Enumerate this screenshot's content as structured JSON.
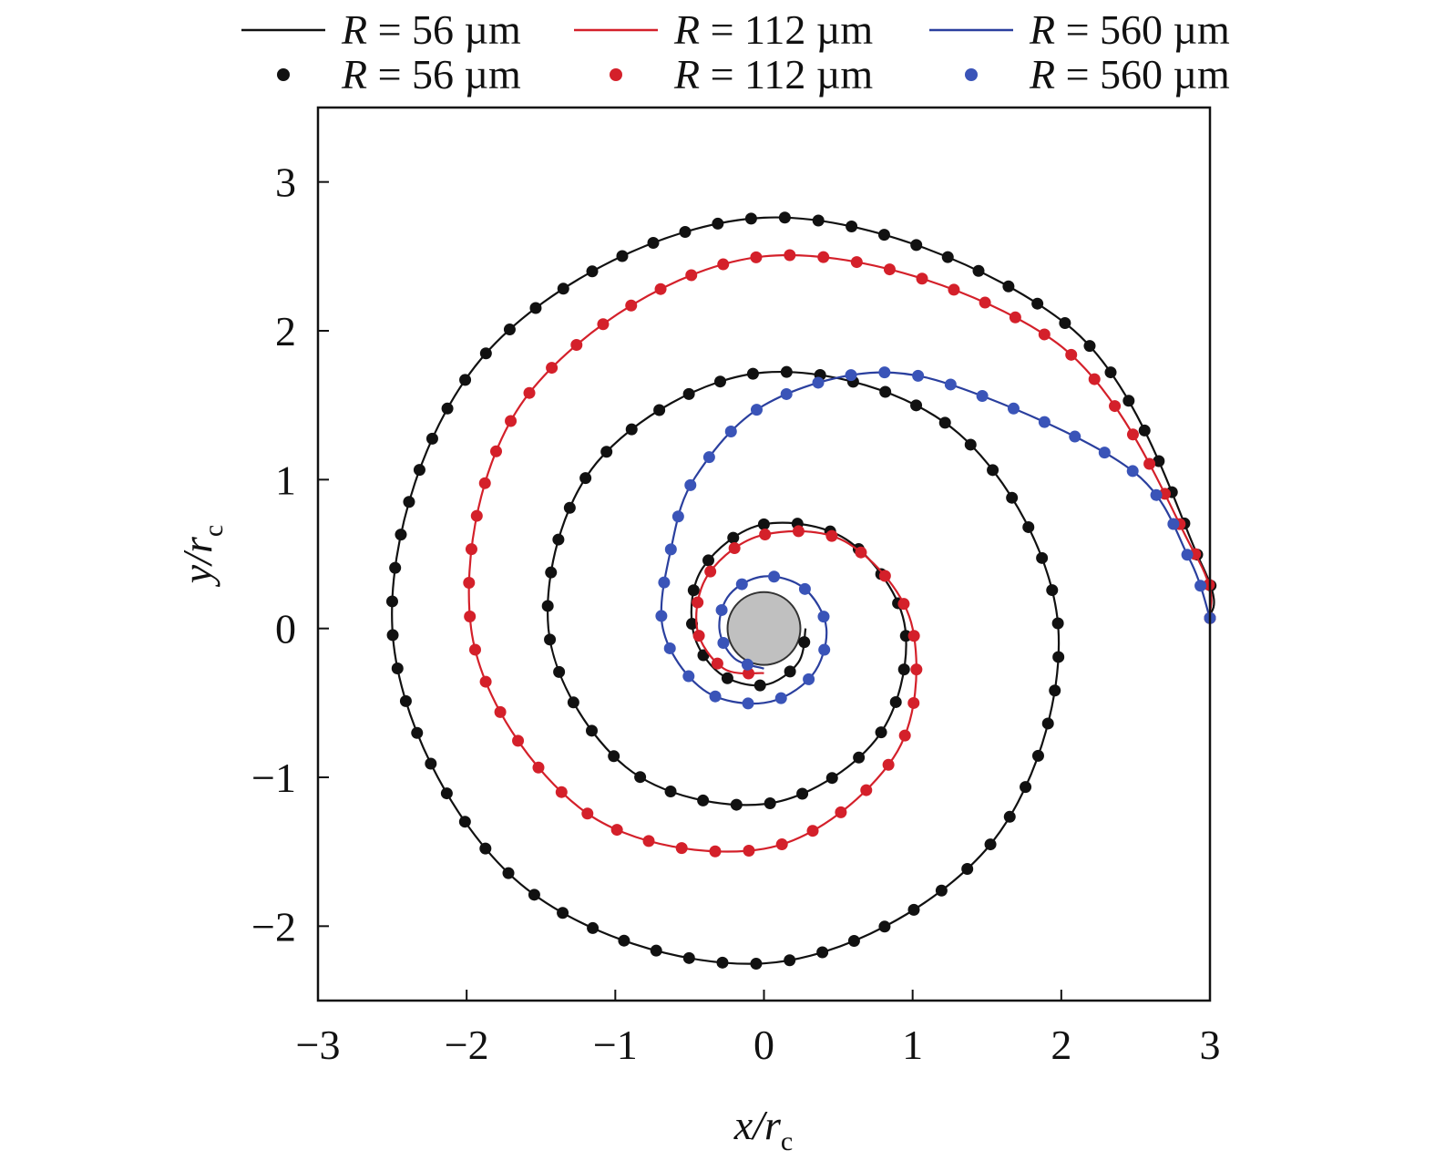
{
  "chart_data": {
    "type": "line",
    "title": "",
    "xlabel": {
      "main": "x/r",
      "sub": "c"
    },
    "ylabel": {
      "main": "y/r",
      "sub": "c"
    },
    "xlim": [
      -3,
      3
    ],
    "ylim": [
      -2.5,
      3.5
    ],
    "xticks": [
      -3,
      -2,
      -1,
      0,
      1,
      2,
      3
    ],
    "yticks": [
      -2,
      -1,
      0,
      1,
      2,
      3
    ],
    "xtick_labels": [
      "−3",
      "−2",
      "−1",
      "0",
      "1",
      "2",
      "3"
    ],
    "ytick_labels": [
      "−2",
      "−1",
      "0",
      "1",
      "2",
      "3"
    ],
    "grid": false,
    "legend_placement": "top, outside",
    "legend": [
      {
        "prefix": "R",
        "text": " = 56 µm",
        "kind": "line",
        "color": "#111111"
      },
      {
        "prefix": "R",
        "text": " = 112 µm",
        "kind": "line",
        "color": "#d4202a"
      },
      {
        "prefix": "R",
        "text": " = 560 µm",
        "kind": "line",
        "color": "#2a3f9e"
      },
      {
        "prefix": "R",
        "text": " = 56 µm",
        "kind": "marker",
        "color": "#111111"
      },
      {
        "prefix": "R",
        "text": " = 112 µm",
        "kind": "marker",
        "color": "#d4202a"
      },
      {
        "prefix": "R",
        "text": " = 560 µm",
        "kind": "marker",
        "color": "#3a54b8"
      }
    ],
    "obstacle": {
      "center": [
        0,
        0
      ],
      "radius": 0.245,
      "color": "#c0c0c0"
    },
    "series": [
      {
        "name": "R = 56 µm",
        "color": "#111111",
        "marker_color": "#111111",
        "points": [
          [
            3.0,
            0.07
          ],
          [
            2.94,
            0.44
          ],
          [
            2.04,
            2.04
          ],
          [
            0,
            2.76
          ],
          [
            -1.86,
            1.86
          ],
          [
            -2.5,
            0
          ],
          [
            -1.68,
            -1.68
          ],
          [
            0,
            -2.25
          ],
          [
            1.49,
            -1.49
          ],
          [
            1.98,
            0
          ],
          [
            1.31,
            1.31
          ],
          [
            0,
            1.72
          ],
          [
            -1.12,
            1.12
          ],
          [
            -1.45,
            0
          ],
          [
            -0.93,
            -0.93
          ],
          [
            0,
            -1.18
          ],
          [
            0.75,
            -0.75
          ],
          [
            0.95,
            0
          ],
          [
            0.58,
            0.58
          ],
          [
            0,
            0.7
          ],
          [
            -0.41,
            0.41
          ],
          [
            -0.48,
            0
          ],
          [
            -0.3,
            -0.3
          ],
          [
            0,
            -0.38
          ],
          [
            0.23,
            -0.23
          ],
          [
            0.28,
            0
          ]
        ]
      },
      {
        "name": "R = 112 µm",
        "color": "#d4202a",
        "marker_color": "#d4202a",
        "points": [
          [
            3.0,
            0.07
          ],
          [
            2.9,
            0.5
          ],
          [
            1.94,
            1.94
          ],
          [
            0,
            2.5
          ],
          [
            -1.58,
            1.58
          ],
          [
            -1.97,
            0
          ],
          [
            -1.22,
            -1.22
          ],
          [
            0,
            -1.48
          ],
          [
            0.87,
            -0.87
          ],
          [
            1.0,
            0
          ],
          [
            0.57,
            0.57
          ],
          [
            0,
            0.63
          ],
          [
            -0.37,
            0.37
          ],
          [
            -0.45,
            0
          ],
          [
            -0.27,
            -0.27
          ],
          [
            0,
            -0.3
          ]
        ]
      },
      {
        "name": "R = 560 µm",
        "color": "#2a3f9e",
        "marker_color": "#3a54b8",
        "points": [
          [
            3.0,
            0.07
          ],
          [
            2.86,
            0.47
          ],
          [
            2.49,
            1.05
          ],
          [
            1.5,
            1.55
          ],
          [
            0.76,
            1.72
          ],
          [
            0,
            1.5
          ],
          [
            -0.46,
            1.02
          ],
          [
            -0.62,
            0.56
          ],
          [
            -0.68,
            0
          ],
          [
            -0.41,
            -0.41
          ],
          [
            0,
            -0.5
          ],
          [
            0.32,
            -0.32
          ],
          [
            0.42,
            0
          ],
          [
            0.27,
            0.27
          ],
          [
            0,
            0.35
          ],
          [
            -0.23,
            0.23
          ],
          [
            -0.3,
            0
          ],
          [
            -0.2,
            -0.2
          ],
          [
            0,
            -0.27
          ]
        ]
      }
    ]
  }
}
